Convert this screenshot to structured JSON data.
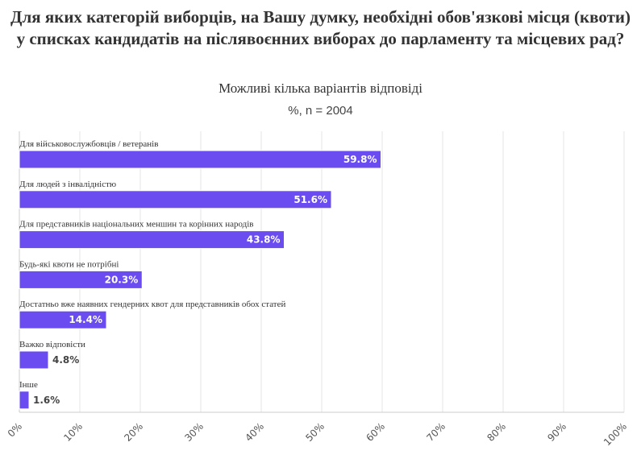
{
  "chart_data": {
    "type": "bar",
    "orientation": "horizontal",
    "title": "Для яких категорій виборців, на Вашу думку, необхідні обов'язкові місця (квоти) у списках кандидатів на післявоєнних виборах до парламенту та місцевих рад?",
    "subtitle": "Можливі кілька варіантів відповіді",
    "note": "%, n = 2004",
    "categories": [
      "Для військовослужбовців / ветеранів",
      "Для людей з інвалідністю",
      "Для представників національних меншин та корінних народів",
      "Будь-які квоти не потрібні",
      "Достатньо вже наявних гендерних квот для представників обох статей",
      "Важко відповісти",
      "Інше"
    ],
    "values": [
      59.8,
      51.6,
      43.8,
      20.3,
      14.4,
      4.8,
      1.6
    ],
    "value_labels": [
      "59.8%",
      "51.6%",
      "43.8%",
      "20.3%",
      "14.4%",
      "4.8%",
      "1.6%"
    ],
    "x_ticks": [
      "0%",
      "10%",
      "20%",
      "30%",
      "40%",
      "50%",
      "60%",
      "70%",
      "80%",
      "90%",
      "100%"
    ],
    "xlim": [
      0,
      100
    ],
    "grid": true,
    "bar_color": "#6a4cf0"
  }
}
